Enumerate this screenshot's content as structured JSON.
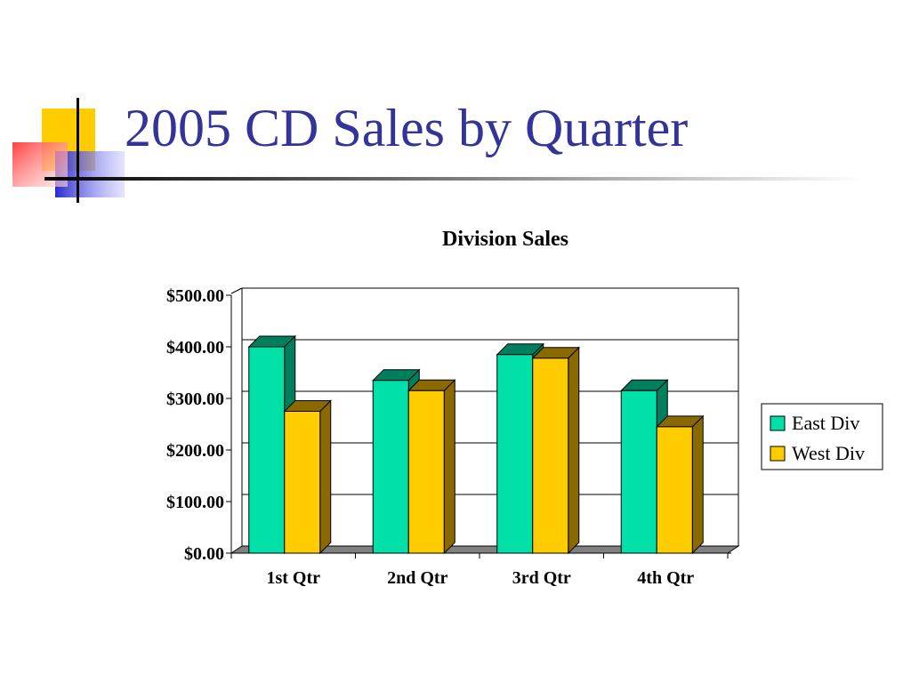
{
  "slide": {
    "title": "2005 CD Sales by Quarter"
  },
  "chart_data": {
    "type": "bar",
    "title": "Division Sales",
    "xlabel": "",
    "ylabel": "",
    "categories": [
      "1st Qtr",
      "2nd Qtr",
      "3rd Qtr",
      "4th Qtr"
    ],
    "series": [
      {
        "name": "East Div",
        "values": [
          400,
          335,
          385,
          315
        ],
        "color": "#00e0a8",
        "side_color": "#007f5f"
      },
      {
        "name": "West Div",
        "values": [
          275,
          315,
          378,
          245
        ],
        "color": "#ffcc00",
        "side_color": "#8a6a00"
      }
    ],
    "ylim": [
      0,
      500
    ],
    "yticks": [
      0,
      100,
      200,
      300,
      400,
      500
    ],
    "ytick_labels": [
      "$0.00",
      "$100.00",
      "$200.00",
      "$300.00",
      "$400.00",
      "$500.00"
    ],
    "grid": true,
    "legend_position": "right"
  },
  "colors": {
    "title": "#333399",
    "deco_yellow": "#ffcc00",
    "deco_blue": "#3333cc",
    "deco_red": "#ff4444"
  }
}
